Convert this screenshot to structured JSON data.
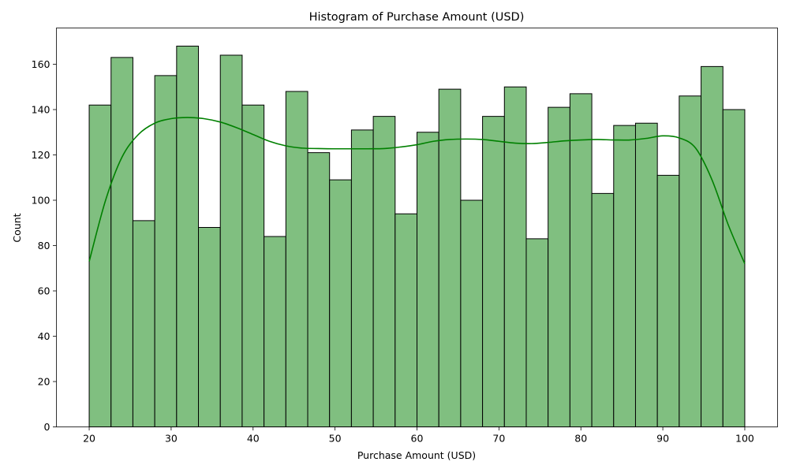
{
  "chart_data": {
    "type": "histogram",
    "title": "Histogram of Purchase Amount (USD)",
    "xlabel": "Purchase Amount (USD)",
    "ylabel": "Count",
    "xlim": [
      16,
      104
    ],
    "ylim": [
      0,
      176
    ],
    "xticks": [
      20,
      30,
      40,
      50,
      60,
      70,
      80,
      90,
      100
    ],
    "yticks": [
      0,
      20,
      40,
      60,
      80,
      100,
      120,
      140,
      160
    ],
    "bin_edges": [
      20,
      22.667,
      25.333,
      28,
      30.667,
      33.333,
      36,
      38.667,
      41.333,
      44,
      46.667,
      49.333,
      52,
      54.667,
      57.333,
      60,
      62.667,
      65.333,
      68,
      70.667,
      73.333,
      76,
      78.667,
      81.333,
      84,
      86.667,
      89.333,
      92,
      94.667,
      97.333,
      100
    ],
    "counts": [
      142,
      163,
      91,
      155,
      168,
      88,
      164,
      142,
      84,
      148,
      121,
      109,
      131,
      137,
      94,
      130,
      149,
      100,
      137,
      150,
      83,
      141,
      147,
      103,
      133,
      134,
      111,
      146,
      159,
      140
    ],
    "kde": {
      "x": [
        20,
        22,
        24,
        26,
        28,
        30,
        32,
        34,
        36,
        38,
        40,
        42,
        44,
        46,
        48,
        50,
        52,
        54,
        56,
        58,
        60,
        62,
        64,
        66,
        68,
        70,
        72,
        74,
        76,
        78,
        80,
        82,
        84,
        86,
        88,
        90,
        92,
        94,
        96,
        98,
        100
      ],
      "y": [
        73,
        100,
        119,
        129,
        134,
        136,
        136.5,
        136,
        134.5,
        132,
        129,
        126,
        124,
        123,
        122.8,
        122.7,
        122.7,
        122.7,
        122.8,
        123.5,
        124.5,
        126,
        126.8,
        127,
        126.8,
        126,
        125.2,
        125,
        125.5,
        126.2,
        126.6,
        126.8,
        126.6,
        126.6,
        127.3,
        128.4,
        127.5,
        123,
        109,
        89,
        72
      ]
    },
    "bar_color": "#80bf80",
    "line_color": "#008000",
    "grid": false,
    "legend": "none"
  }
}
